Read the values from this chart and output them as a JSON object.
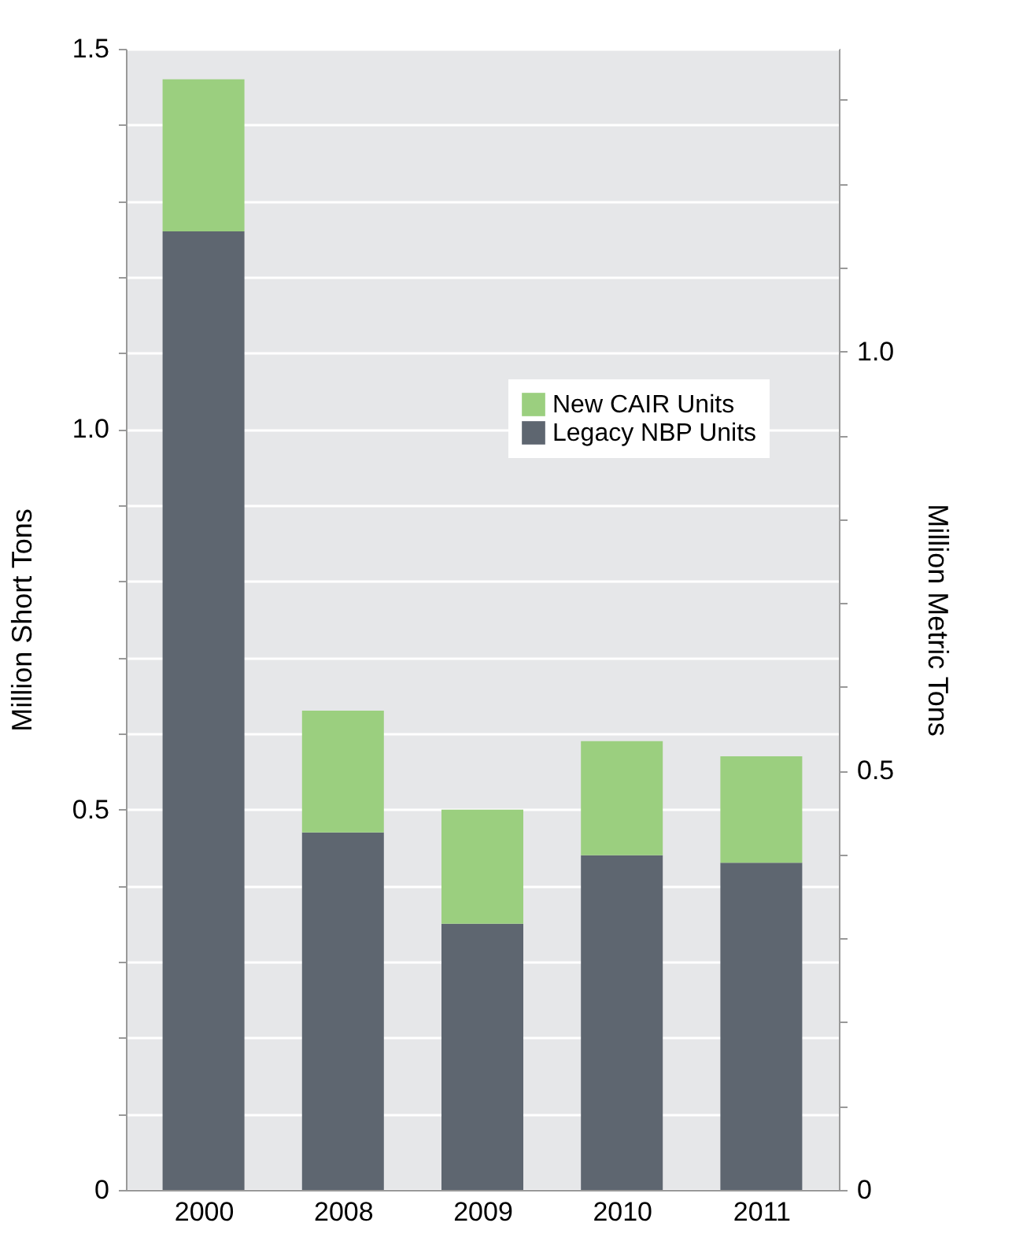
{
  "chart_data": {
    "type": "bar",
    "stacked": true,
    "categories": [
      "2000",
      "2008",
      "2009",
      "2010",
      "2011"
    ],
    "series": [
      {
        "name": "Legacy NBP Units",
        "color": "#5e6670",
        "values": [
          1.26,
          0.47,
          0.35,
          0.44,
          0.43
        ]
      },
      {
        "name": "New CAIR Units",
        "color": "#9bcf7f",
        "values": [
          0.2,
          0.16,
          0.15,
          0.15,
          0.14
        ]
      }
    ],
    "ylabel": "Million Short Tons",
    "y2label": "Million Metric Tons",
    "ylim": [
      0,
      1.5
    ],
    "yticks": [
      0,
      {
        "value": 0.1,
        "label": null
      },
      {
        "value": 0.2,
        "label": null
      },
      {
        "value": 0.3,
        "label": null
      },
      {
        "value": 0.4,
        "label": null
      },
      0.5,
      {
        "value": 0.6,
        "label": null
      },
      {
        "value": 0.7,
        "label": null
      },
      {
        "value": 0.8,
        "label": null
      },
      {
        "value": 0.9,
        "label": null
      },
      {
        "value": 1,
        "label": "1.0"
      },
      {
        "value": 1.1,
        "label": null
      },
      {
        "value": 1.2,
        "label": null
      },
      {
        "value": 1.3,
        "label": null
      },
      {
        "value": 1.4,
        "label": null
      },
      1.5
    ],
    "y2lim": [
      0,
      1.361
    ],
    "y2ticks": [
      0,
      {
        "value": 0.1,
        "label": null
      },
      {
        "value": 0.2,
        "label": null
      },
      {
        "value": 0.3,
        "label": null
      },
      {
        "value": 0.4,
        "label": null
      },
      0.5,
      {
        "value": 0.6,
        "label": null
      },
      {
        "value": 0.7,
        "label": null
      },
      {
        "value": 0.8,
        "label": null
      },
      {
        "value": 0.9,
        "label": null
      },
      {
        "value": 1,
        "label": "1.0"
      },
      {
        "value": 1.1,
        "label": null
      },
      {
        "value": 1.2,
        "label": null
      },
      {
        "value": 1.3,
        "label": null
      }
    ],
    "grid": "y",
    "legend": "top right"
  }
}
